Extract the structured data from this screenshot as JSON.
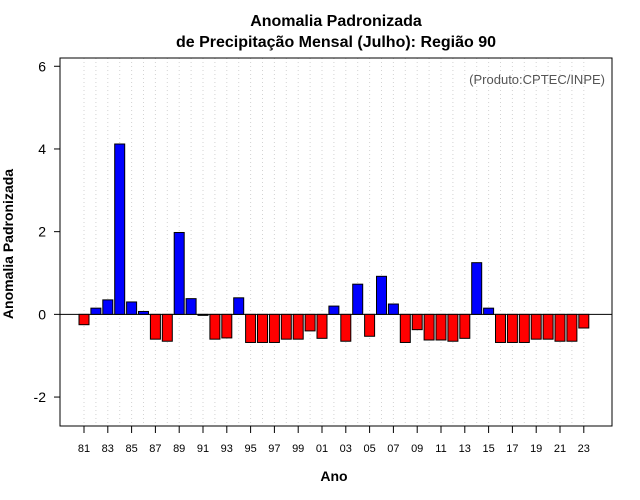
{
  "chart_data": {
    "type": "bar",
    "title": "Anomalia Padronizada",
    "subtitle": "de Precipitação Mensal (Julho): Região 90",
    "xlabel": "Ano",
    "ylabel": "Anomalia Padronizada",
    "annotation": "(Produto:CPTEC/INPE)",
    "ylim": [
      -2.7,
      6.2
    ],
    "yticks": [
      -2,
      0,
      2,
      4,
      6
    ],
    "grid": "vertical-dotted",
    "categories": [
      "81",
      "82",
      "83",
      "84",
      "85",
      "86",
      "87",
      "88",
      "89",
      "90",
      "91",
      "92",
      "93",
      "94",
      "95",
      "96",
      "97",
      "98",
      "99",
      "00",
      "01",
      "02",
      "03",
      "04",
      "05",
      "06",
      "07",
      "08",
      "09",
      "10",
      "11",
      "12",
      "13",
      "14",
      "15",
      "16",
      "17",
      "18",
      "19",
      "20",
      "21",
      "22",
      "23"
    ],
    "tick_labels": [
      "81",
      "83",
      "85",
      "87",
      "89",
      "91",
      "93",
      "95",
      "97",
      "99",
      "01",
      "03",
      "05",
      "07",
      "09",
      "11",
      "13",
      "15",
      "17",
      "19",
      "21",
      "23"
    ],
    "values": [
      -0.25,
      0.15,
      0.35,
      4.12,
      0.3,
      0.07,
      -0.6,
      -0.65,
      1.98,
      0.38,
      -0.02,
      -0.6,
      -0.57,
      0.4,
      -0.68,
      -0.68,
      -0.68,
      -0.6,
      -0.6,
      -0.4,
      -0.58,
      0.2,
      -0.65,
      0.73,
      -0.53,
      0.92,
      0.25,
      -0.68,
      -0.37,
      -0.62,
      -0.62,
      -0.65,
      -0.58,
      1.25,
      0.15,
      -0.68,
      -0.68,
      -0.68,
      -0.6,
      -0.6,
      -0.65,
      -0.65,
      -0.33
    ],
    "positive_color": "#0000ff",
    "negative_color": "#ff0000"
  }
}
